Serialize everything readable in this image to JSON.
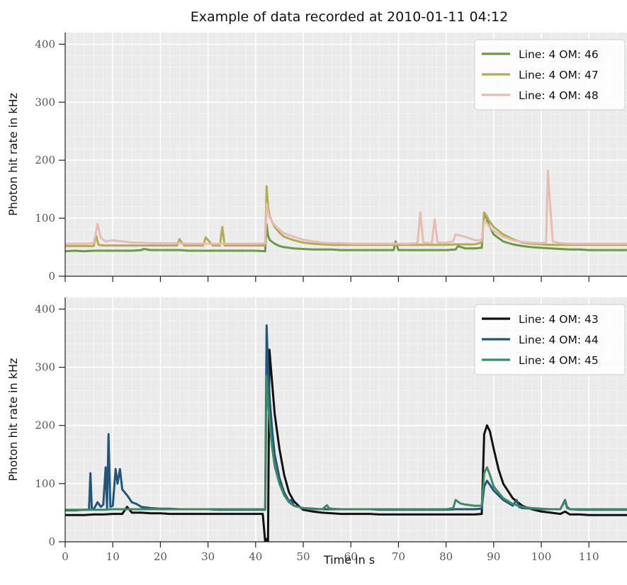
{
  "title": "Example of data recorded at 2010-01-11 04:12",
  "xlabel": "Time in s",
  "chart_data": [
    {
      "type": "line",
      "ylabel": "Photon hit rate in kHz",
      "xlim": [
        0,
        118
      ],
      "ylim": [
        0,
        420
      ],
      "xticks": [
        0,
        10,
        20,
        30,
        40,
        50,
        60,
        70,
        80,
        90,
        100,
        110
      ],
      "yticks": [
        0,
        100,
        200,
        300,
        400
      ],
      "grid": true,
      "legend_position": "top-right",
      "series": [
        {
          "name": "Line: 4 OM: 46",
          "color": "#6a9a45",
          "x": [
            0,
            2,
            4,
            6,
            8,
            10,
            12,
            14,
            16,
            16.5,
            18,
            20,
            22,
            24,
            26,
            28,
            30,
            32,
            34,
            36,
            38,
            40,
            42,
            42.3,
            42.6,
            43,
            44,
            45,
            46,
            48,
            50,
            52,
            54,
            56,
            58,
            60,
            62,
            64,
            66,
            68,
            69,
            69.4,
            70,
            72,
            74,
            76,
            78,
            80,
            82,
            82.5,
            84,
            86,
            87.5,
            88,
            88.5,
            89,
            90,
            92,
            94,
            96,
            98,
            100,
            102,
            104,
            106,
            108,
            110,
            112,
            114,
            116,
            118
          ],
          "y": [
            43,
            44,
            43,
            44,
            44,
            44,
            44,
            44,
            45,
            47,
            45,
            45,
            45,
            45,
            44,
            44,
            44,
            44,
            44,
            44,
            44,
            44,
            43,
            90,
            70,
            62,
            56,
            52,
            50,
            48,
            47,
            46,
            46,
            46,
            45,
            45,
            45,
            45,
            45,
            45,
            45,
            60,
            45,
            45,
            45,
            45,
            45,
            45,
            46,
            52,
            48,
            48,
            49,
            108,
            100,
            88,
            72,
            60,
            55,
            52,
            50,
            49,
            48,
            47,
            46,
            46,
            45,
            45,
            45,
            45,
            45
          ]
        },
        {
          "name": "Line: 4 OM: 47",
          "color": "#b5ac52",
          "x": [
            0,
            2,
            4,
            6,
            6.5,
            7,
            8,
            10,
            12,
            14,
            16,
            18,
            20,
            22,
            23.5,
            24,
            25,
            27,
            29,
            29.5,
            31,
            32.5,
            33,
            33.5,
            35,
            37,
            39,
            41,
            42,
            42.3,
            42.6,
            43,
            44,
            45,
            46,
            48,
            50,
            52,
            54,
            56,
            58,
            60,
            62,
            64,
            66,
            68,
            70,
            72,
            74,
            76,
            78,
            80,
            82,
            84,
            86,
            87.5,
            88,
            88.5,
            89,
            90,
            92,
            94,
            96,
            98,
            100,
            102,
            104,
            106,
            108,
            110,
            112,
            114,
            116,
            118
          ],
          "y": [
            52,
            52,
            52,
            52,
            70,
            54,
            53,
            53,
            53,
            53,
            53,
            53,
            53,
            53,
            53,
            64,
            53,
            53,
            53,
            67,
            53,
            53,
            85,
            53,
            53,
            53,
            53,
            53,
            53,
            155,
            120,
            102,
            85,
            75,
            68,
            62,
            58,
            56,
            55,
            54,
            54,
            54,
            54,
            54,
            54,
            54,
            54,
            54,
            54,
            54,
            54,
            54,
            55,
            55,
            55,
            58,
            110,
            104,
            96,
            85,
            72,
            64,
            58,
            56,
            55,
            54,
            54,
            54,
            54,
            54,
            54,
            54,
            54,
            54
          ]
        },
        {
          "name": "Line: 4 OM: 48",
          "color": "#e6bdb0",
          "x": [
            0,
            2,
            4,
            6,
            6.8,
            7.5,
            8.5,
            10,
            12,
            14,
            16,
            18,
            20,
            22,
            24,
            26,
            28,
            30,
            32,
            34,
            36,
            38,
            40,
            42,
            42.3,
            42.6,
            43,
            44,
            45,
            46,
            48,
            50,
            52,
            54,
            56,
            58,
            60,
            62,
            64,
            66,
            68,
            70,
            72,
            74,
            74.6,
            75.2,
            77,
            77.6,
            78.2,
            80,
            81.5,
            82,
            84,
            86,
            87.5,
            88,
            88.5,
            89,
            90,
            92,
            94,
            96,
            98,
            100,
            101,
            101.4,
            101.8,
            102.4,
            104,
            106,
            108,
            110,
            112,
            114,
            116,
            118
          ],
          "y": [
            56,
            56,
            56,
            57,
            90,
            66,
            60,
            62,
            60,
            58,
            58,
            57,
            57,
            57,
            57,
            56,
            56,
            56,
            56,
            56,
            56,
            56,
            56,
            57,
            125,
            110,
            100,
            88,
            80,
            74,
            68,
            63,
            60,
            58,
            57,
            57,
            56,
            56,
            56,
            56,
            56,
            56,
            56,
            57,
            110,
            58,
            57,
            98,
            58,
            58,
            60,
            72,
            68,
            62,
            62,
            95,
            92,
            86,
            78,
            68,
            62,
            59,
            58,
            57,
            58,
            182,
            130,
            60,
            57,
            56,
            56,
            56,
            56,
            56,
            56,
            56
          ]
        }
      ]
    },
    {
      "type": "line",
      "ylabel": "Photon hit rate in kHz",
      "xlim": [
        0,
        118
      ],
      "ylim": [
        0,
        420
      ],
      "xticks": [
        0,
        10,
        20,
        30,
        40,
        50,
        60,
        70,
        80,
        90,
        100,
        110
      ],
      "yticks": [
        0,
        100,
        200,
        300,
        400
      ],
      "grid": true,
      "legend_position": "top-right",
      "series": [
        {
          "name": "Line: 4 OM: 43",
          "color": "#111111",
          "x": [
            0,
            2,
            4,
            6,
            8,
            10,
            12,
            13,
            14,
            16,
            18,
            20,
            22,
            24,
            26,
            28,
            30,
            32,
            34,
            36,
            38,
            40,
            41.5,
            42,
            42.3,
            42.6,
            42.9,
            43.2,
            43.6,
            44,
            45,
            46,
            47,
            48,
            49,
            50,
            52,
            54,
            56,
            58,
            60,
            62,
            64,
            66,
            68,
            70,
            72,
            74,
            76,
            78,
            80,
            82,
            84,
            86,
            87.5,
            88,
            88.6,
            89.2,
            90,
            91,
            92,
            94,
            96,
            98,
            100,
            102,
            104,
            105,
            106,
            108,
            110,
            112,
            114,
            116,
            118
          ],
          "y": [
            46,
            46,
            46,
            47,
            47,
            48,
            48,
            60,
            50,
            50,
            49,
            49,
            48,
            48,
            48,
            48,
            48,
            48,
            48,
            48,
            48,
            48,
            48,
            0,
            5,
            0,
            330,
            300,
            260,
            220,
            160,
            115,
            85,
            70,
            62,
            55,
            52,
            50,
            49,
            48,
            48,
            48,
            48,
            47,
            47,
            47,
            47,
            47,
            47,
            47,
            47,
            47,
            47,
            47,
            48,
            185,
            200,
            190,
            160,
            125,
            100,
            75,
            62,
            56,
            52,
            50,
            48,
            52,
            47,
            47,
            46,
            46,
            46,
            46,
            46
          ]
        },
        {
          "name": "Line: 4 OM: 44",
          "color": "#22567a",
          "x": [
            0,
            2,
            4,
            5,
            5.3,
            5.6,
            6,
            6.8,
            7.5,
            8,
            8.5,
            8.8,
            9.1,
            9.5,
            10,
            10.6,
            11,
            11.5,
            12,
            13,
            14,
            15,
            16,
            18,
            20,
            22,
            24,
            26,
            28,
            30,
            32,
            34,
            36,
            38,
            40,
            41.5,
            42,
            42.3,
            42.6,
            43,
            43.5,
            44,
            45,
            46,
            47,
            47.5,
            48,
            50,
            52,
            54,
            56,
            58,
            60,
            62,
            64,
            66,
            68,
            70,
            72,
            74,
            76,
            78,
            80,
            82,
            84,
            86,
            87.5,
            88,
            88.6,
            89.2,
            90,
            92,
            94,
            94.8,
            95.3,
            96,
            98,
            100,
            102,
            104,
            105,
            105.4,
            106,
            108,
            110,
            112,
            114,
            116,
            118
          ],
          "y": [
            54,
            54,
            55,
            55,
            118,
            58,
            56,
            68,
            60,
            64,
            128,
            58,
            185,
            60,
            62,
            125,
            100,
            125,
            90,
            80,
            68,
            65,
            60,
            58,
            57,
            57,
            56,
            56,
            56,
            56,
            55,
            55,
            55,
            55,
            55,
            55,
            55,
            372,
            300,
            240,
            190,
            150,
            110,
            85,
            70,
            72,
            62,
            58,
            57,
            56,
            56,
            56,
            56,
            56,
            56,
            55,
            55,
            55,
            55,
            55,
            55,
            55,
            55,
            56,
            56,
            56,
            57,
            95,
            105,
            98,
            88,
            72,
            62,
            72,
            60,
            58,
            57,
            56,
            56,
            56,
            72,
            60,
            56,
            55,
            55,
            55,
            55,
            55,
            55
          ]
        },
        {
          "name": "Line: 4 OM: 45",
          "color": "#3e8a64",
          "x": [
            0,
            2,
            4,
            6,
            8,
            10,
            12,
            14,
            16,
            18,
            20,
            22,
            24,
            26,
            28,
            30,
            32,
            34,
            36,
            38,
            40,
            41.5,
            42,
            42.3,
            42.6,
            43,
            43.5,
            44,
            45,
            46,
            47,
            48,
            50,
            52,
            54,
            55,
            55.4,
            56,
            58,
            60,
            62,
            64,
            66,
            68,
            70,
            72,
            74,
            76,
            78,
            80,
            81.5,
            82,
            83,
            84,
            86,
            87.5,
            88,
            88.6,
            89.2,
            90,
            92,
            94,
            96,
            98,
            100,
            102,
            104,
            105,
            105.4,
            106,
            108,
            110,
            112,
            114,
            116,
            118
          ],
          "y": [
            55,
            55,
            55,
            55,
            55,
            56,
            56,
            56,
            56,
            56,
            56,
            56,
            56,
            56,
            56,
            56,
            56,
            56,
            56,
            56,
            56,
            56,
            56,
            285,
            240,
            200,
            160,
            130,
            100,
            80,
            68,
            62,
            58,
            56,
            56,
            63,
            58,
            57,
            56,
            56,
            56,
            56,
            56,
            56,
            56,
            56,
            56,
            56,
            56,
            56,
            58,
            72,
            66,
            64,
            62,
            62,
            118,
            128,
            115,
            95,
            75,
            65,
            60,
            58,
            57,
            56,
            56,
            70,
            58,
            56,
            56,
            56,
            56,
            56,
            56,
            56
          ]
        }
      ]
    }
  ]
}
